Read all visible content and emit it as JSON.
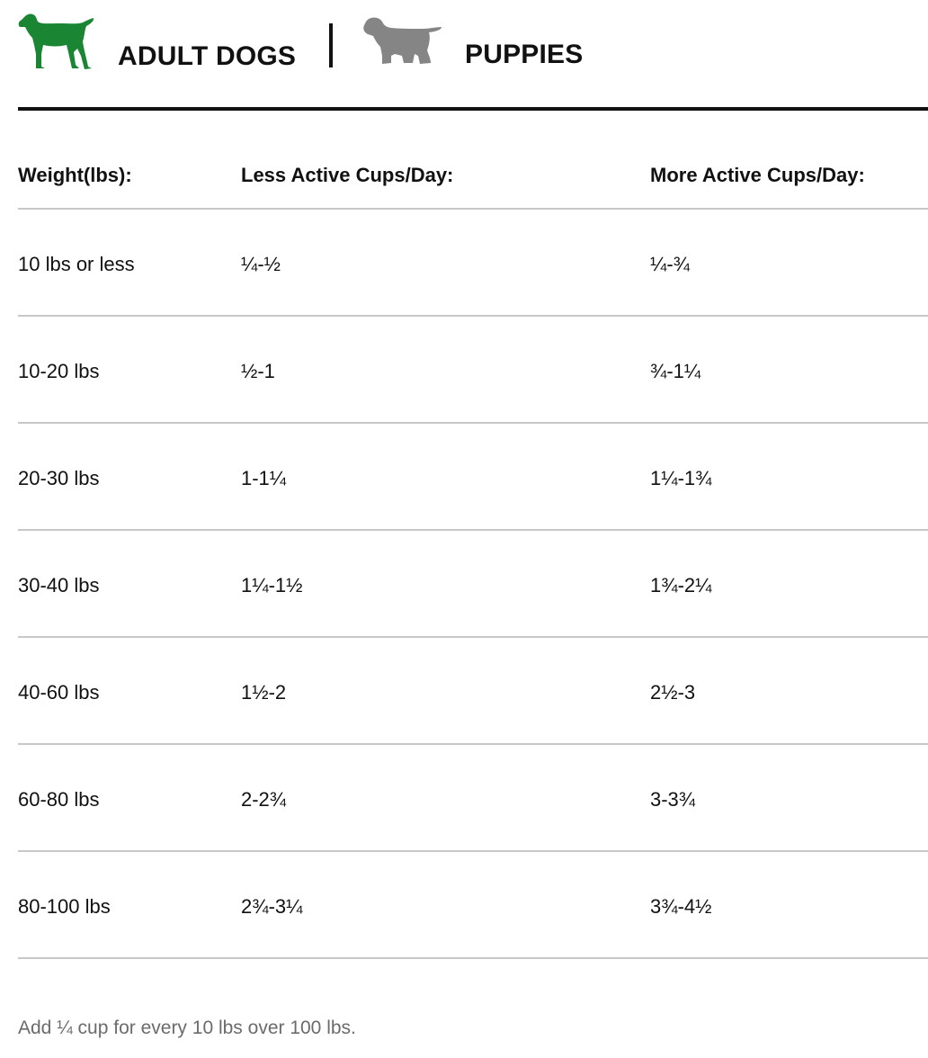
{
  "tabs": [
    {
      "label": "ADULT DOGS",
      "icon": "adult-dog-icon",
      "color": "#1a8533",
      "active": true
    },
    {
      "label": "PUPPIES",
      "icon": "puppy-icon",
      "color": "#858585",
      "active": false
    }
  ],
  "table": {
    "headers": [
      "Weight(lbs):",
      "Less Active Cups/Day:",
      "More Active Cups/Day:"
    ],
    "rows": [
      [
        "10 lbs or less",
        "¼-½",
        "¼-¾"
      ],
      [
        "10-20 lbs",
        "½-1",
        "¾-1¼"
      ],
      [
        "20-30 lbs",
        "1-1¼",
        "1¼-1¾"
      ],
      [
        "30-40 lbs",
        "1¼-1½",
        "1¾-2¼"
      ],
      [
        "40-60 lbs",
        "1½-2",
        "2½-3"
      ],
      [
        "60-80 lbs",
        "2-2¾",
        "3-3¾"
      ],
      [
        "80-100 lbs",
        "2¾-3¼",
        "3¾-4½"
      ]
    ]
  },
  "footer": "Add ¼ cup for every 10 lbs over 100 lbs."
}
